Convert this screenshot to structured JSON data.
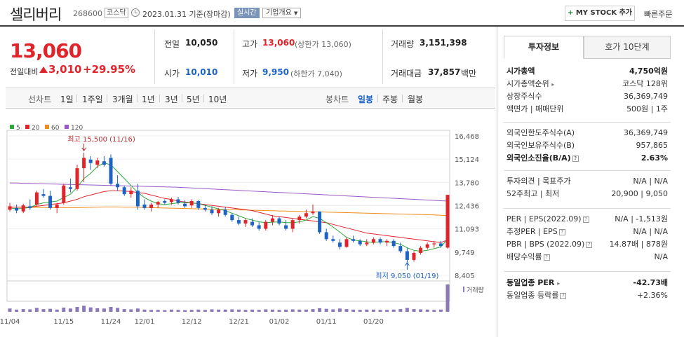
{
  "header": {
    "name": "셀리버리",
    "code": "268600",
    "market": "코스닥",
    "date": "2023.01.31 기준(장마감)",
    "realtime": "실시간",
    "company_info": "기업개요",
    "mystock_label": "MY STOCK 추가",
    "quick_order": "빠른주문"
  },
  "price": {
    "current": "13,060",
    "change_label": "전일대비",
    "change_amount": "3,010",
    "change_rate": "+29.95%"
  },
  "summary": {
    "prev_label": "전일",
    "prev_value": "10,050",
    "high_label": "고가",
    "high_value": "13,060",
    "high_sub": "(상한가 13,060)",
    "volume_label": "거래량",
    "volume_value": "3,151,398",
    "open_label": "시가",
    "open_value": "10,010",
    "low_label": "저가",
    "low_value": "9,950",
    "low_sub": "(하한가 7,040)",
    "amount_label": "거래대금",
    "amount_value": "37,857",
    "amount_unit": "백만"
  },
  "period_tabs": {
    "line_chart": "선차트",
    "items": [
      "1일",
      "1주일",
      "3개월",
      "1년",
      "3년",
      "5년",
      "10년"
    ],
    "candle_chart": "봉차트",
    "candle_items": [
      "일봉",
      "주봉",
      "월봉"
    ],
    "active_candle": "일봉"
  },
  "legend": [
    {
      "label": "5",
      "color": "#2ea83a"
    },
    {
      "label": "20",
      "color": "#e0242b"
    },
    {
      "label": "60",
      "color": "#f08c1a"
    },
    {
      "label": "120",
      "color": "#9b59c8"
    }
  ],
  "chart_data": {
    "type": "candlestick",
    "y_ticks": [
      "16,468",
      "15,124",
      "13,780",
      "12,436",
      "11,093",
      "9,749",
      "8,405"
    ],
    "ylim": [
      8405,
      16468
    ],
    "x_ticks": [
      "11/04",
      "11/15",
      "11/24",
      "12/01",
      "12/12",
      "12/21",
      "01/02",
      "01/11",
      "01/20"
    ],
    "annotation_high": "최고 15,500 (11/16)",
    "annotation_low": "최저 9,050 (01/19)",
    "volume_label": "거래량",
    "candles": [
      [
        12200,
        12600,
        12100,
        12400
      ],
      [
        12300,
        12500,
        12000,
        12150
      ],
      [
        12100,
        12550,
        12000,
        12450
      ],
      [
        12400,
        12800,
        12200,
        12300
      ],
      [
        12500,
        13300,
        12400,
        13200
      ],
      [
        13100,
        13400,
        12900,
        13000
      ],
      [
        13000,
        13300,
        12200,
        12300
      ],
      [
        12300,
        12600,
        12000,
        12500
      ],
      [
        12600,
        13700,
        12500,
        13600
      ],
      [
        13500,
        14000,
        13200,
        13400
      ],
      [
        13400,
        14800,
        13300,
        14600
      ],
      [
        14600,
        15500,
        13800,
        15200
      ],
      [
        15100,
        15300,
        14500,
        14900
      ],
      [
        14800,
        15200,
        14600,
        15050
      ],
      [
        15000,
        15300,
        14700,
        14800
      ],
      [
        15200,
        15400,
        13600,
        13700
      ],
      [
        13700,
        14200,
        13300,
        13500
      ],
      [
        13500,
        13600,
        13000,
        13100
      ],
      [
        13100,
        13500,
        12900,
        13300
      ],
      [
        13300,
        13700,
        12200,
        12400
      ],
      [
        12500,
        12800,
        12200,
        12300
      ],
      [
        12300,
        12600,
        12100,
        12500
      ],
      [
        12500,
        12700,
        12300,
        12650
      ],
      [
        12700,
        12800,
        12500,
        12600
      ],
      [
        12650,
        12900,
        12500,
        12800
      ],
      [
        12800,
        12950,
        12500,
        12600
      ],
      [
        12550,
        12750,
        12300,
        12400
      ],
      [
        12450,
        12800,
        12300,
        12700
      ],
      [
        12700,
        12750,
        12200,
        12300
      ],
      [
        12300,
        12500,
        12100,
        12200
      ],
      [
        12200,
        12400,
        11900,
        12000
      ],
      [
        12000,
        12300,
        11800,
        12200
      ],
      [
        12200,
        12350,
        11800,
        11900
      ],
      [
        11900,
        12000,
        11500,
        11600
      ],
      [
        11600,
        11800,
        11300,
        11400
      ],
      [
        11400,
        11700,
        11200,
        11600
      ],
      [
        11500,
        11700,
        11200,
        11300
      ],
      [
        11300,
        11500,
        11000,
        11100
      ],
      [
        11100,
        11600,
        11000,
        11500
      ],
      [
        11500,
        11900,
        11300,
        11700
      ],
      [
        11700,
        11800,
        11300,
        11400
      ],
      [
        11300,
        11600,
        11000,
        11100
      ],
      [
        11100,
        11700,
        10900,
        11600
      ],
      [
        11600,
        11900,
        11400,
        11800
      ],
      [
        11800,
        12200,
        11700,
        12000
      ],
      [
        12000,
        12500,
        11900,
        12100
      ],
      [
        12100,
        12100,
        10800,
        10900
      ],
      [
        10900,
        11100,
        10400,
        10500
      ],
      [
        10500,
        10700,
        10300,
        10400
      ],
      [
        10300,
        10500,
        9900,
        10050
      ],
      [
        10050,
        10600,
        10000,
        10500
      ],
      [
        10500,
        10700,
        10300,
        10400
      ],
      [
        10400,
        10500,
        10100,
        10200
      ],
      [
        10200,
        10500,
        10100,
        10300
      ],
      [
        10300,
        10600,
        10200,
        10500
      ],
      [
        10500,
        10600,
        10200,
        10300
      ],
      [
        10300,
        10500,
        10100,
        10400
      ],
      [
        10400,
        10500,
        10000,
        10100
      ],
      [
        10100,
        10300,
        9700,
        9800
      ],
      [
        9800,
        10000,
        9050,
        9300
      ],
      [
        9300,
        9800,
        9200,
        9700
      ],
      [
        9700,
        10100,
        9600,
        10000
      ],
      [
        10000,
        10300,
        9900,
        10200
      ],
      [
        10200,
        10400,
        10000,
        10250
      ],
      [
        10250,
        10400,
        10000,
        10100
      ],
      [
        10010,
        13060,
        9950,
        13060
      ]
    ],
    "ma5": [
      12300,
      12250,
      12280,
      12330,
      12500,
      12600,
      12650,
      12700,
      12900,
      13100,
      13500,
      14000,
      14300,
      14700,
      14900,
      14800,
      14400,
      14000,
      13600,
      13200,
      12900,
      12700,
      12550,
      12500,
      12550,
      12600,
      12600,
      12600,
      12550,
      12450,
      12350,
      12250,
      12150,
      12000,
      11850,
      11700,
      11600,
      11500,
      11450,
      11480,
      11500,
      11450,
      11450,
      11500,
      11600,
      11800,
      11700,
      11450,
      11200,
      10900,
      10600,
      10450,
      10400,
      10350,
      10300,
      10350,
      10350,
      10300,
      10200,
      10000,
      9850,
      9800,
      9850,
      9950,
      10050,
      10500
    ],
    "ma20": [
      12350,
      12350,
      12350,
      12360,
      12400,
      12450,
      12500,
      12550,
      12600,
      12700,
      12800,
      12950,
      13050,
      13150,
      13250,
      13300,
      13300,
      13280,
      13250,
      13200,
      13150,
      13050,
      12950,
      12850,
      12800,
      12700,
      12650,
      12600,
      12550,
      12500,
      12450,
      12400,
      12350,
      12300,
      12250,
      12200,
      12150,
      12050,
      11950,
      11850,
      11800,
      11750,
      11700,
      11650,
      11600,
      11550,
      11500,
      11450,
      11350,
      11250,
      11150,
      11050,
      10950,
      10850,
      10800,
      10750,
      10700,
      10650,
      10600,
      10550,
      10500,
      10450,
      10400,
      10350,
      10300,
      10450
    ],
    "ma60": [
      12350,
      12350,
      12340,
      12340,
      12330,
      12330,
      12320,
      12320,
      12320,
      12320,
      12320,
      12330,
      12340,
      12350,
      12360,
      12360,
      12360,
      12350,
      12350,
      12340,
      12330,
      12320,
      12310,
      12300,
      12290,
      12280,
      12270,
      12260,
      12250,
      12240,
      12230,
      12220,
      12210,
      12200,
      12190,
      12180,
      12170,
      12160,
      12150,
      12140,
      12130,
      12120,
      12110,
      12100,
      12090,
      12080,
      12070,
      12060,
      12050,
      12040,
      12030,
      12020,
      12010,
      12000,
      11990,
      11980,
      11970,
      11960,
      11950,
      11940,
      11930,
      11920,
      11910,
      11900,
      11880,
      11860
    ],
    "ma120": [
      13750,
      13740,
      13730,
      13720,
      13710,
      13700,
      13690,
      13680,
      13670,
      13660,
      13650,
      13640,
      13630,
      13620,
      13610,
      13600,
      13590,
      13580,
      13570,
      13560,
      13550,
      13540,
      13530,
      13520,
      13510,
      13500,
      13480,
      13460,
      13440,
      13420,
      13400,
      13380,
      13360,
      13340,
      13320,
      13300,
      13280,
      13260,
      13240,
      13220,
      13200,
      13180,
      13160,
      13140,
      13120,
      13100,
      13080,
      13060,
      13040,
      13020,
      13000,
      12980,
      12960,
      12940,
      12920,
      12900,
      12880,
      12860,
      12840,
      12820,
      12800,
      12780,
      12760,
      12740,
      12720,
      12700
    ],
    "volumes": [
      12,
      8,
      10,
      9,
      14,
      10,
      11,
      8,
      15,
      12,
      18,
      22,
      16,
      13,
      12,
      18,
      14,
      10,
      9,
      12,
      8,
      7,
      7,
      6,
      8,
      7,
      6,
      7,
      8,
      7,
      9,
      8,
      8,
      9,
      8,
      7,
      8,
      7,
      9,
      8,
      7,
      8,
      9,
      8,
      8,
      10,
      13,
      11,
      9,
      12,
      10,
      8,
      7,
      8,
      8,
      7,
      7,
      8,
      10,
      14,
      10,
      9,
      8,
      7,
      8,
      100
    ]
  },
  "tabs": {
    "invest_info": "투자정보",
    "orderbook": "호가 10단계"
  },
  "info": {
    "market_cap_label": "시가총액",
    "market_cap_value": "4,750억원",
    "market_cap_rank_label": "시가총액순위",
    "market_cap_rank_value": "코스닥 128위",
    "shares_label": "상장주식수",
    "shares_value": "36,369,749",
    "par_label": "액면가 | 매매단위",
    "par_value": "500원 | 1주",
    "foreign_limit_label": "외국인한도주식수(A)",
    "foreign_limit_value": "36,369,749",
    "foreign_hold_label": "외국인보유주식수(B)",
    "foreign_hold_value": "957,865",
    "foreign_rate_label": "외국인소진율(B/A)",
    "foreign_rate_value": "2.63%",
    "opinion_label": "투자의견 | 목표주가",
    "opinion_value": "N/A | N/A",
    "week52_label": "52주최고 | 최저",
    "week52_value": "20,900 | 9,050",
    "per_label": "PER | EPS(2022.09)",
    "per_value": "N/A | -1,513원",
    "est_per_label": "추정PER | EPS",
    "est_per_value": "N/A | N/A",
    "pbr_label": "PBR | BPS (2022.09)",
    "pbr_value": "14.87배 | 878원",
    "div_label": "배당수익률",
    "div_value": "N/A",
    "sector_per_label": "동일업종 PER",
    "sector_per_value": "-42.73배",
    "sector_rate_label": "동일업종 등락률",
    "sector_rate_value": "+2.36%"
  }
}
